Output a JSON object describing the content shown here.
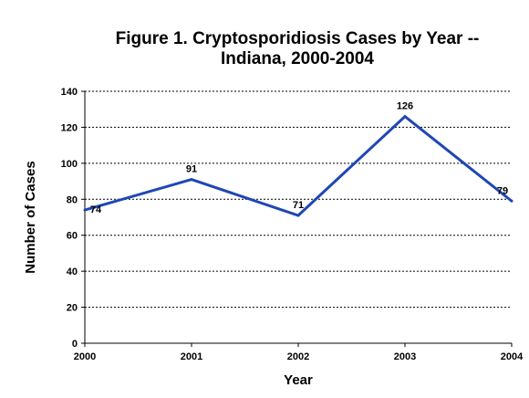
{
  "chart_data": {
    "type": "line",
    "title_line1": "Figure 1. Cryptosporidiosis Cases by Year --",
    "title_line2": "Indiana, 2000-2004",
    "xlabel": "Year",
    "ylabel": "Number of Cases",
    "categories": [
      "2000",
      "2001",
      "2002",
      "2003",
      "2004"
    ],
    "values": [
      74,
      91,
      71,
      126,
      79
    ],
    "ylim": [
      0,
      140
    ],
    "yticks": [
      0,
      20,
      40,
      60,
      80,
      100,
      120,
      140
    ],
    "grid": true,
    "line_color": "#1f47b3"
  }
}
